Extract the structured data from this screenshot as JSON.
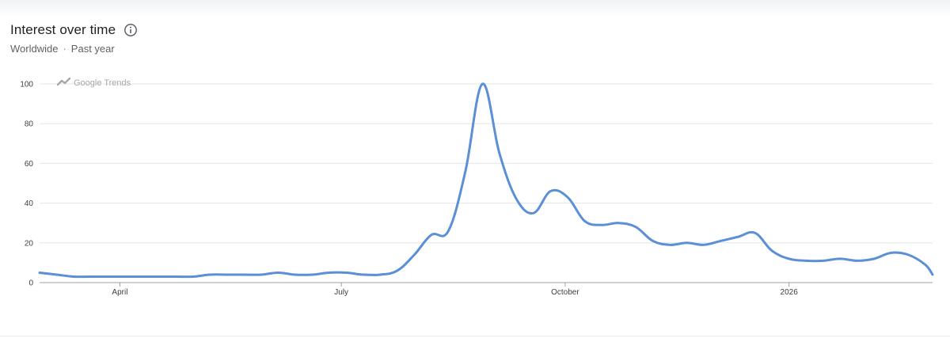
{
  "header": {
    "title": "Interest over time",
    "region": "Worldwide",
    "separator": "·",
    "period": "Past year"
  },
  "watermark": "Google Trends",
  "colors": {
    "line": "#5b8fd6",
    "grid": "#e6e6e6",
    "axis": "#9aa0a6"
  },
  "icons": [
    "info-icon",
    "trends-logo-icon"
  ],
  "chart_data": {
    "type": "line",
    "title": "Interest over time",
    "xlabel": "",
    "ylabel": "",
    "ylim": [
      0,
      100
    ],
    "yticks": [
      0,
      20,
      40,
      60,
      80,
      100
    ],
    "grid": true,
    "x_tick_labels": [
      {
        "label": "April",
        "date": "2025-04-01"
      },
      {
        "label": "July",
        "date": "2025-07-01"
      },
      {
        "label": "October",
        "date": "2025-10-01"
      },
      {
        "label": "2026",
        "date": "2026-01-01"
      }
    ],
    "x_range": [
      "2025-02-27",
      "2026-03-01"
    ],
    "series": [
      {
        "points": [
          [
            "2025-02-27",
            5
          ],
          [
            "2025-03-06",
            4
          ],
          [
            "2025-03-13",
            3
          ],
          [
            "2025-03-20",
            3
          ],
          [
            "2025-03-27",
            3
          ],
          [
            "2025-04-03",
            3
          ],
          [
            "2025-04-10",
            3
          ],
          [
            "2025-04-17",
            3
          ],
          [
            "2025-04-24",
            3
          ],
          [
            "2025-05-01",
            3
          ],
          [
            "2025-05-08",
            4
          ],
          [
            "2025-05-15",
            4
          ],
          [
            "2025-05-22",
            4
          ],
          [
            "2025-05-29",
            4
          ],
          [
            "2025-06-05",
            5
          ],
          [
            "2025-06-12",
            4
          ],
          [
            "2025-06-19",
            4
          ],
          [
            "2025-06-26",
            5
          ],
          [
            "2025-07-03",
            5
          ],
          [
            "2025-07-10",
            4
          ],
          [
            "2025-07-17",
            4
          ],
          [
            "2025-07-24",
            6
          ],
          [
            "2025-07-31",
            14
          ],
          [
            "2025-08-07",
            24
          ],
          [
            "2025-08-14",
            26
          ],
          [
            "2025-08-21",
            56
          ],
          [
            "2025-08-28",
            100
          ],
          [
            "2025-09-04",
            65
          ],
          [
            "2025-09-11",
            42
          ],
          [
            "2025-09-18",
            35
          ],
          [
            "2025-09-25",
            46
          ],
          [
            "2025-10-02",
            43
          ],
          [
            "2025-10-09",
            31
          ],
          [
            "2025-10-16",
            29
          ],
          [
            "2025-10-23",
            30
          ],
          [
            "2025-10-30",
            28
          ],
          [
            "2025-11-06",
            21
          ],
          [
            "2025-11-13",
            19
          ],
          [
            "2025-11-20",
            20
          ],
          [
            "2025-11-27",
            19
          ],
          [
            "2025-12-04",
            21
          ],
          [
            "2025-12-11",
            23
          ],
          [
            "2025-12-18",
            25
          ],
          [
            "2025-12-25",
            16
          ],
          [
            "2026-01-01",
            12
          ],
          [
            "2026-01-08",
            11
          ],
          [
            "2026-01-15",
            11
          ],
          [
            "2026-01-22",
            12
          ],
          [
            "2026-01-29",
            11
          ],
          [
            "2026-02-05",
            12
          ],
          [
            "2026-02-12",
            15
          ],
          [
            "2026-02-19",
            14
          ],
          [
            "2026-02-26",
            9
          ],
          [
            "2026-03-01",
            4
          ]
        ]
      }
    ]
  }
}
